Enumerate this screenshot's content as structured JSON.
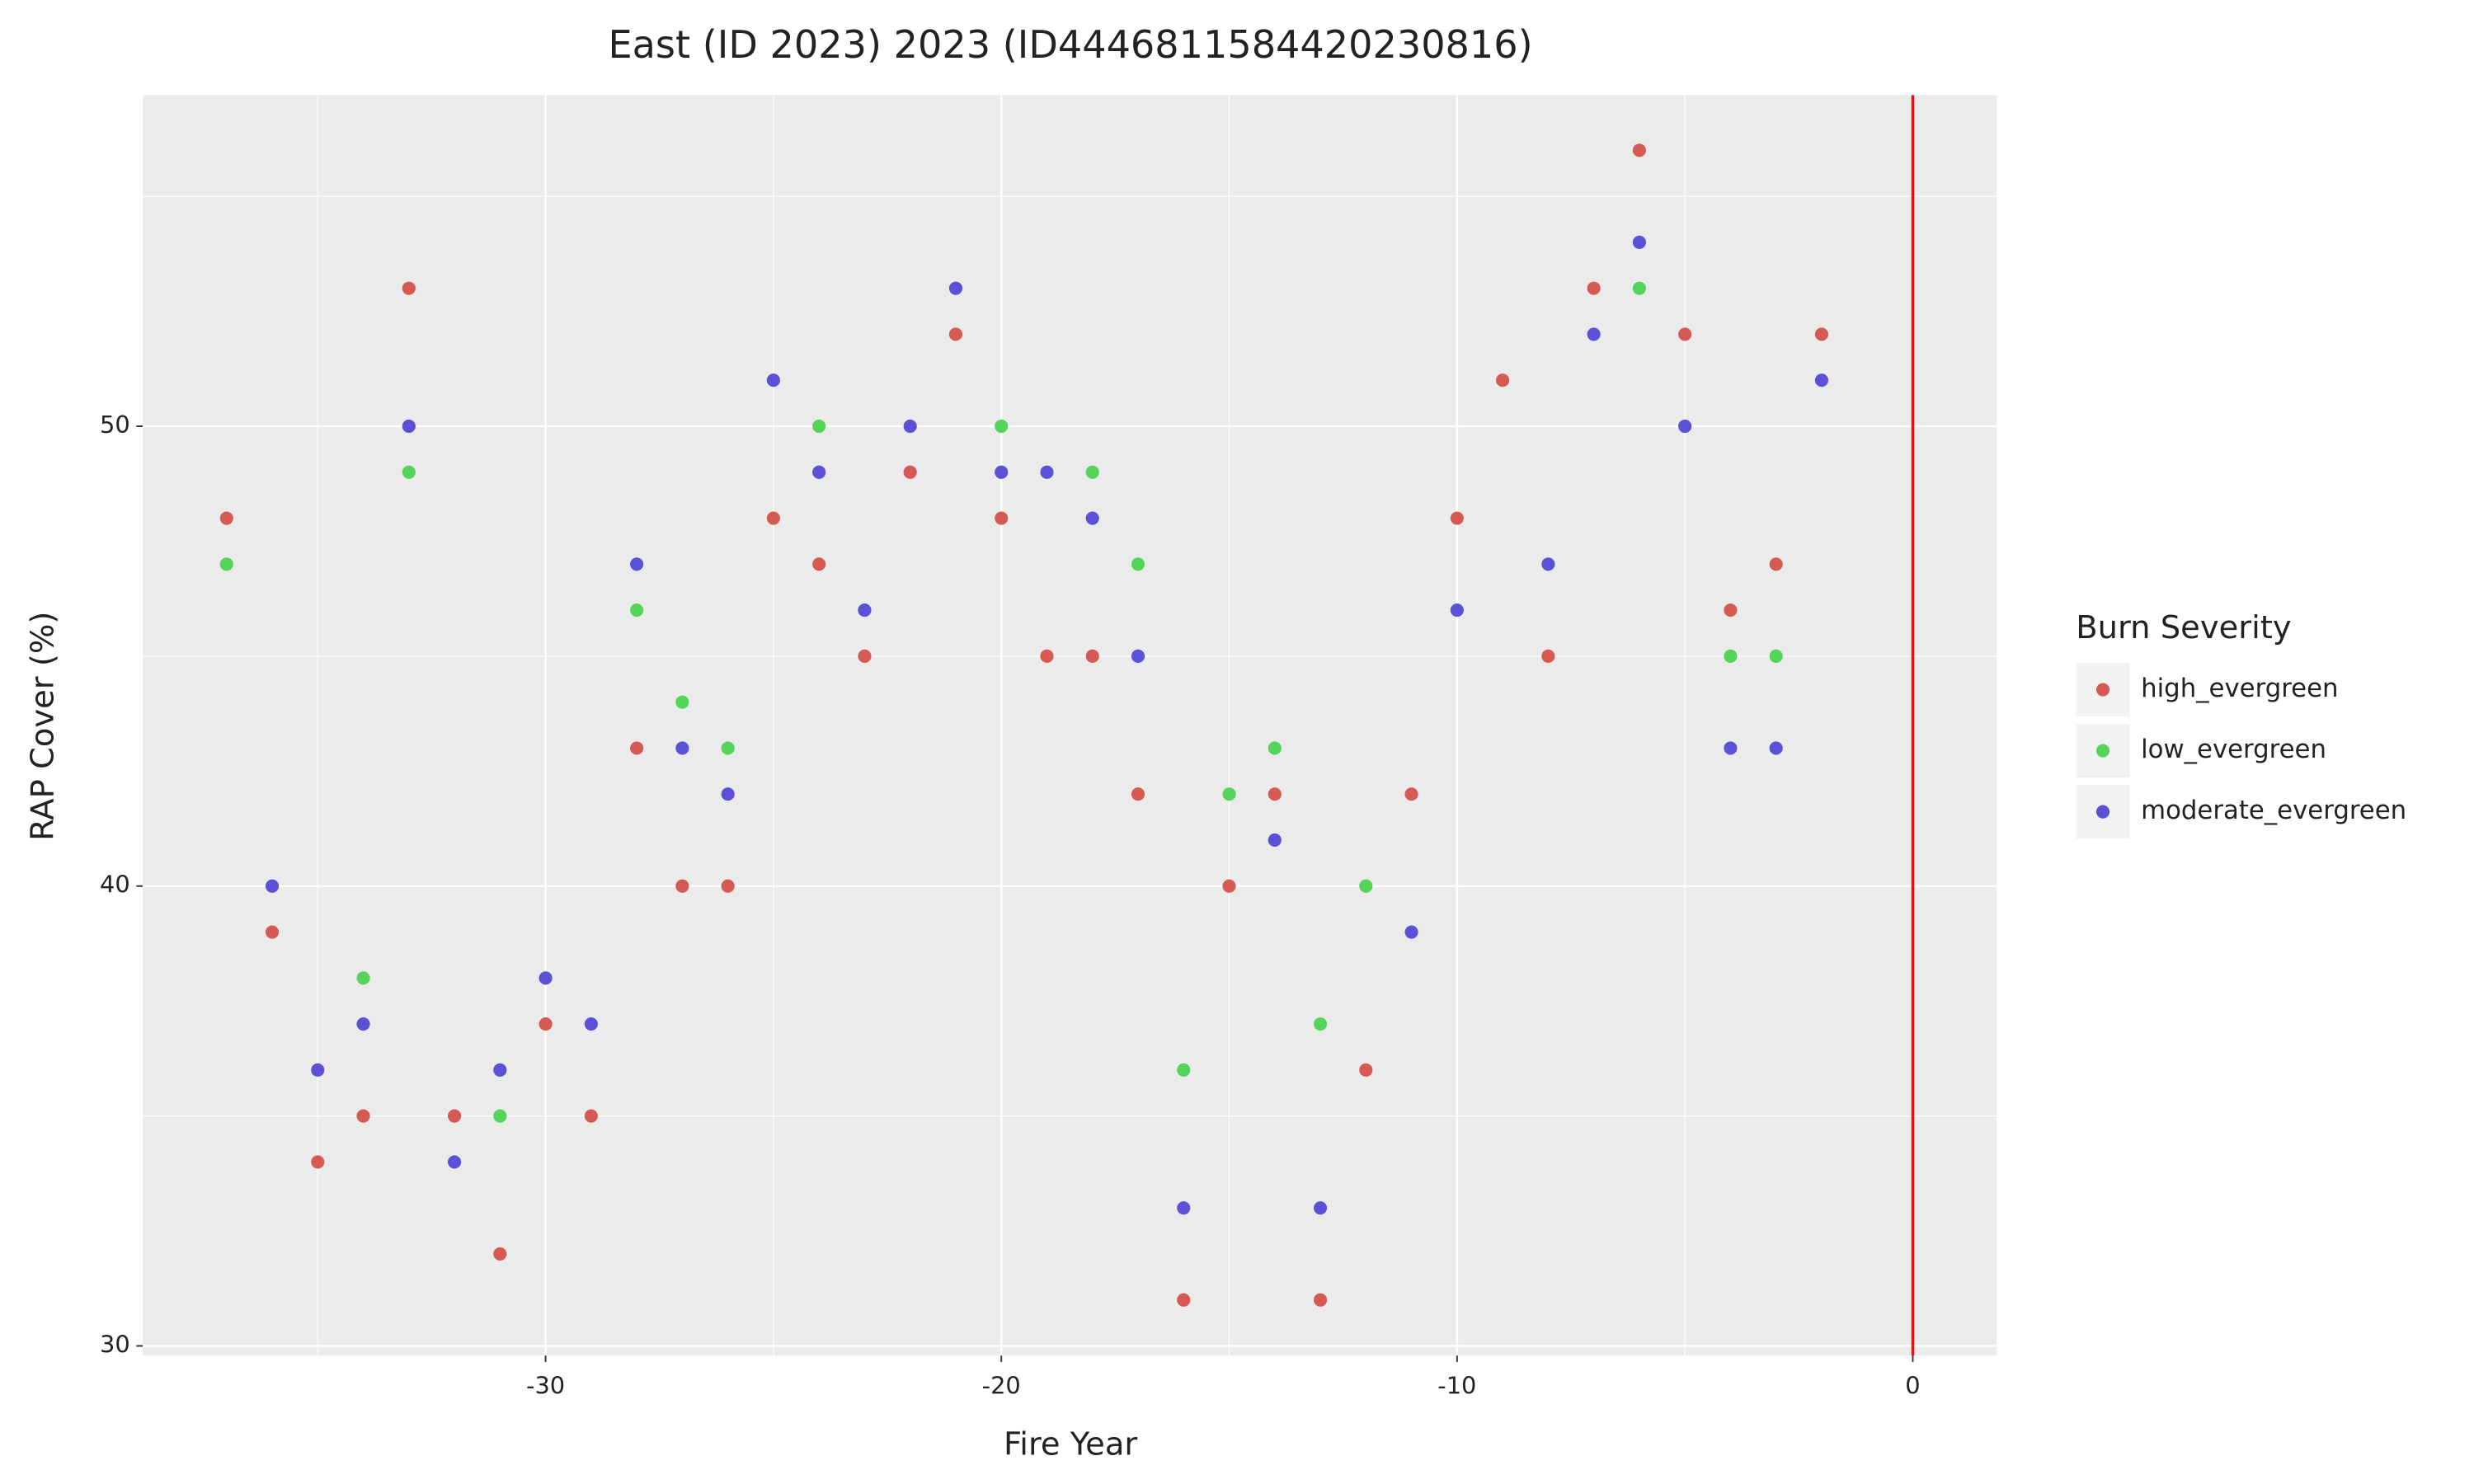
{
  "chart_data": {
    "type": "scatter",
    "title": "East (ID 2023) 2023 (ID44468115844202308​16)",
    "x_label": "Fire Year",
    "y_label": "RAP Cover (%)",
    "xlim": [
      -38.84,
      1.84
    ],
    "ylim": [
      29.79,
      57.2
    ],
    "xticks": [
      -30,
      -20,
      -10,
      0
    ],
    "yticks": [
      30,
      40,
      50
    ],
    "grid": true,
    "legend_position": "right",
    "legend_title": "Burn Severity",
    "vline": 0,
    "vline_color": "#e3131b",
    "series": [
      {
        "name": "high_evergreen",
        "color": "#d65a54",
        "x": [
          -37,
          -36,
          -35,
          -34,
          -33,
          -32,
          -31,
          -30,
          -29,
          -28,
          -27,
          -26,
          -25,
          -24,
          -23,
          -22,
          -21,
          -20,
          -19,
          -18,
          -17,
          -16,
          -15,
          -14,
          -13,
          -12,
          -11,
          -10,
          -9,
          -8,
          -7,
          -6,
          -5,
          -4,
          -3,
          -2
        ],
        "values": [
          48,
          39,
          34,
          35,
          53,
          35,
          32,
          37,
          35,
          43,
          40,
          40,
          48,
          47,
          45,
          49,
          52,
          48,
          45,
          45,
          42,
          31,
          40,
          42,
          31,
          36,
          42,
          48,
          51,
          45,
          53,
          56,
          52,
          46,
          47,
          52
        ]
      },
      {
        "name": "low_evergreen",
        "color": "#55d45a",
        "x": [
          -37,
          -34,
          -33,
          -31,
          -28,
          -27,
          -26,
          -24,
          -20,
          -18,
          -17,
          -16,
          -15,
          -14,
          -13,
          -12,
          -6,
          -4,
          -3
        ],
        "values": [
          47,
          38,
          49,
          35,
          46,
          44,
          43,
          50,
          50,
          49,
          47,
          36,
          42,
          43,
          37,
          40,
          53,
          45,
          45
        ]
      },
      {
        "name": "moderate_evergreen",
        "color": "#5b50d6",
        "x": [
          -36,
          -35,
          -34,
          -33,
          -32,
          -31,
          -30,
          -29,
          -28,
          -27,
          -26,
          -25,
          -24,
          -23,
          -22,
          -21,
          -20,
          -19,
          -18,
          -17,
          -16,
          -14,
          -13,
          -11,
          -10,
          -8,
          -7,
          -6,
          -5,
          -4,
          -3,
          -2
        ],
        "values": [
          40,
          36,
          37,
          50,
          34,
          36,
          38,
          37,
          47,
          43,
          42,
          51,
          49,
          46,
          50,
          53,
          49,
          49,
          48,
          45,
          33,
          41,
          33,
          39,
          46,
          47,
          52,
          54,
          50,
          43,
          43,
          51
        ]
      }
    ]
  }
}
